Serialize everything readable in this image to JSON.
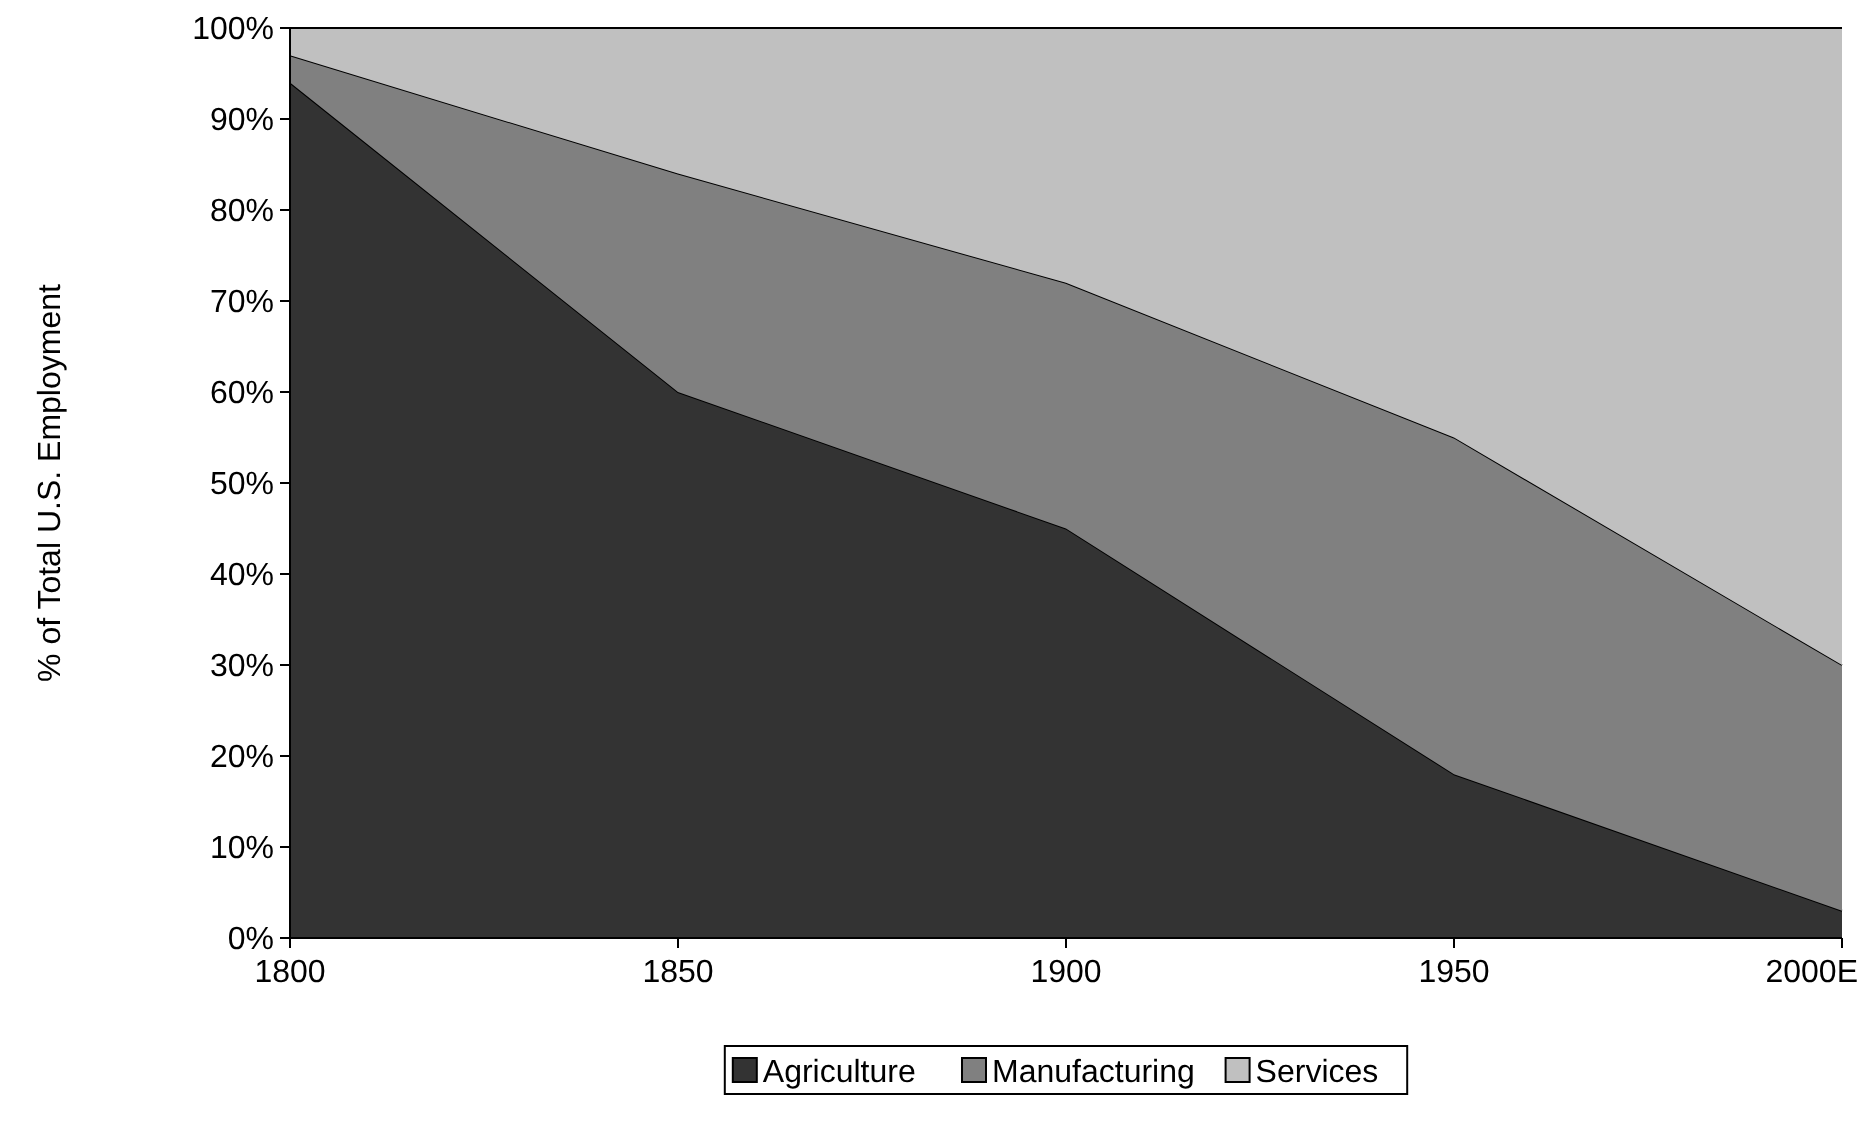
{
  "chart_data": {
    "type": "area",
    "stacked": true,
    "ylabel": "% of Total U.S. Employment",
    "categories": [
      "1800",
      "1850",
      "1900",
      "1950",
      "2000E"
    ],
    "series": [
      {
        "name": "Agriculture",
        "color": "#333333",
        "values": [
          94,
          60,
          45,
          18,
          3
        ]
      },
      {
        "name": "Manufacturing",
        "color": "#808080",
        "values": [
          3,
          24,
          27,
          37,
          27
        ]
      },
      {
        "name": "Services",
        "color": "#c0c0c0",
        "values": [
          3,
          16,
          28,
          45,
          70
        ]
      }
    ],
    "ylim": [
      0,
      100
    ],
    "yticks": [
      {
        "value": 0,
        "label": "0%"
      },
      {
        "value": 10,
        "label": "10%"
      },
      {
        "value": 20,
        "label": "20%"
      },
      {
        "value": 30,
        "label": "30%"
      },
      {
        "value": 40,
        "label": "40%"
      },
      {
        "value": 50,
        "label": "50%"
      },
      {
        "value": 60,
        "label": "60%"
      },
      {
        "value": 70,
        "label": "70%"
      },
      {
        "value": 80,
        "label": "80%"
      },
      {
        "value": 90,
        "label": "90%"
      },
      {
        "value": 100,
        "label": "100%"
      }
    ],
    "legend": "bottom"
  }
}
